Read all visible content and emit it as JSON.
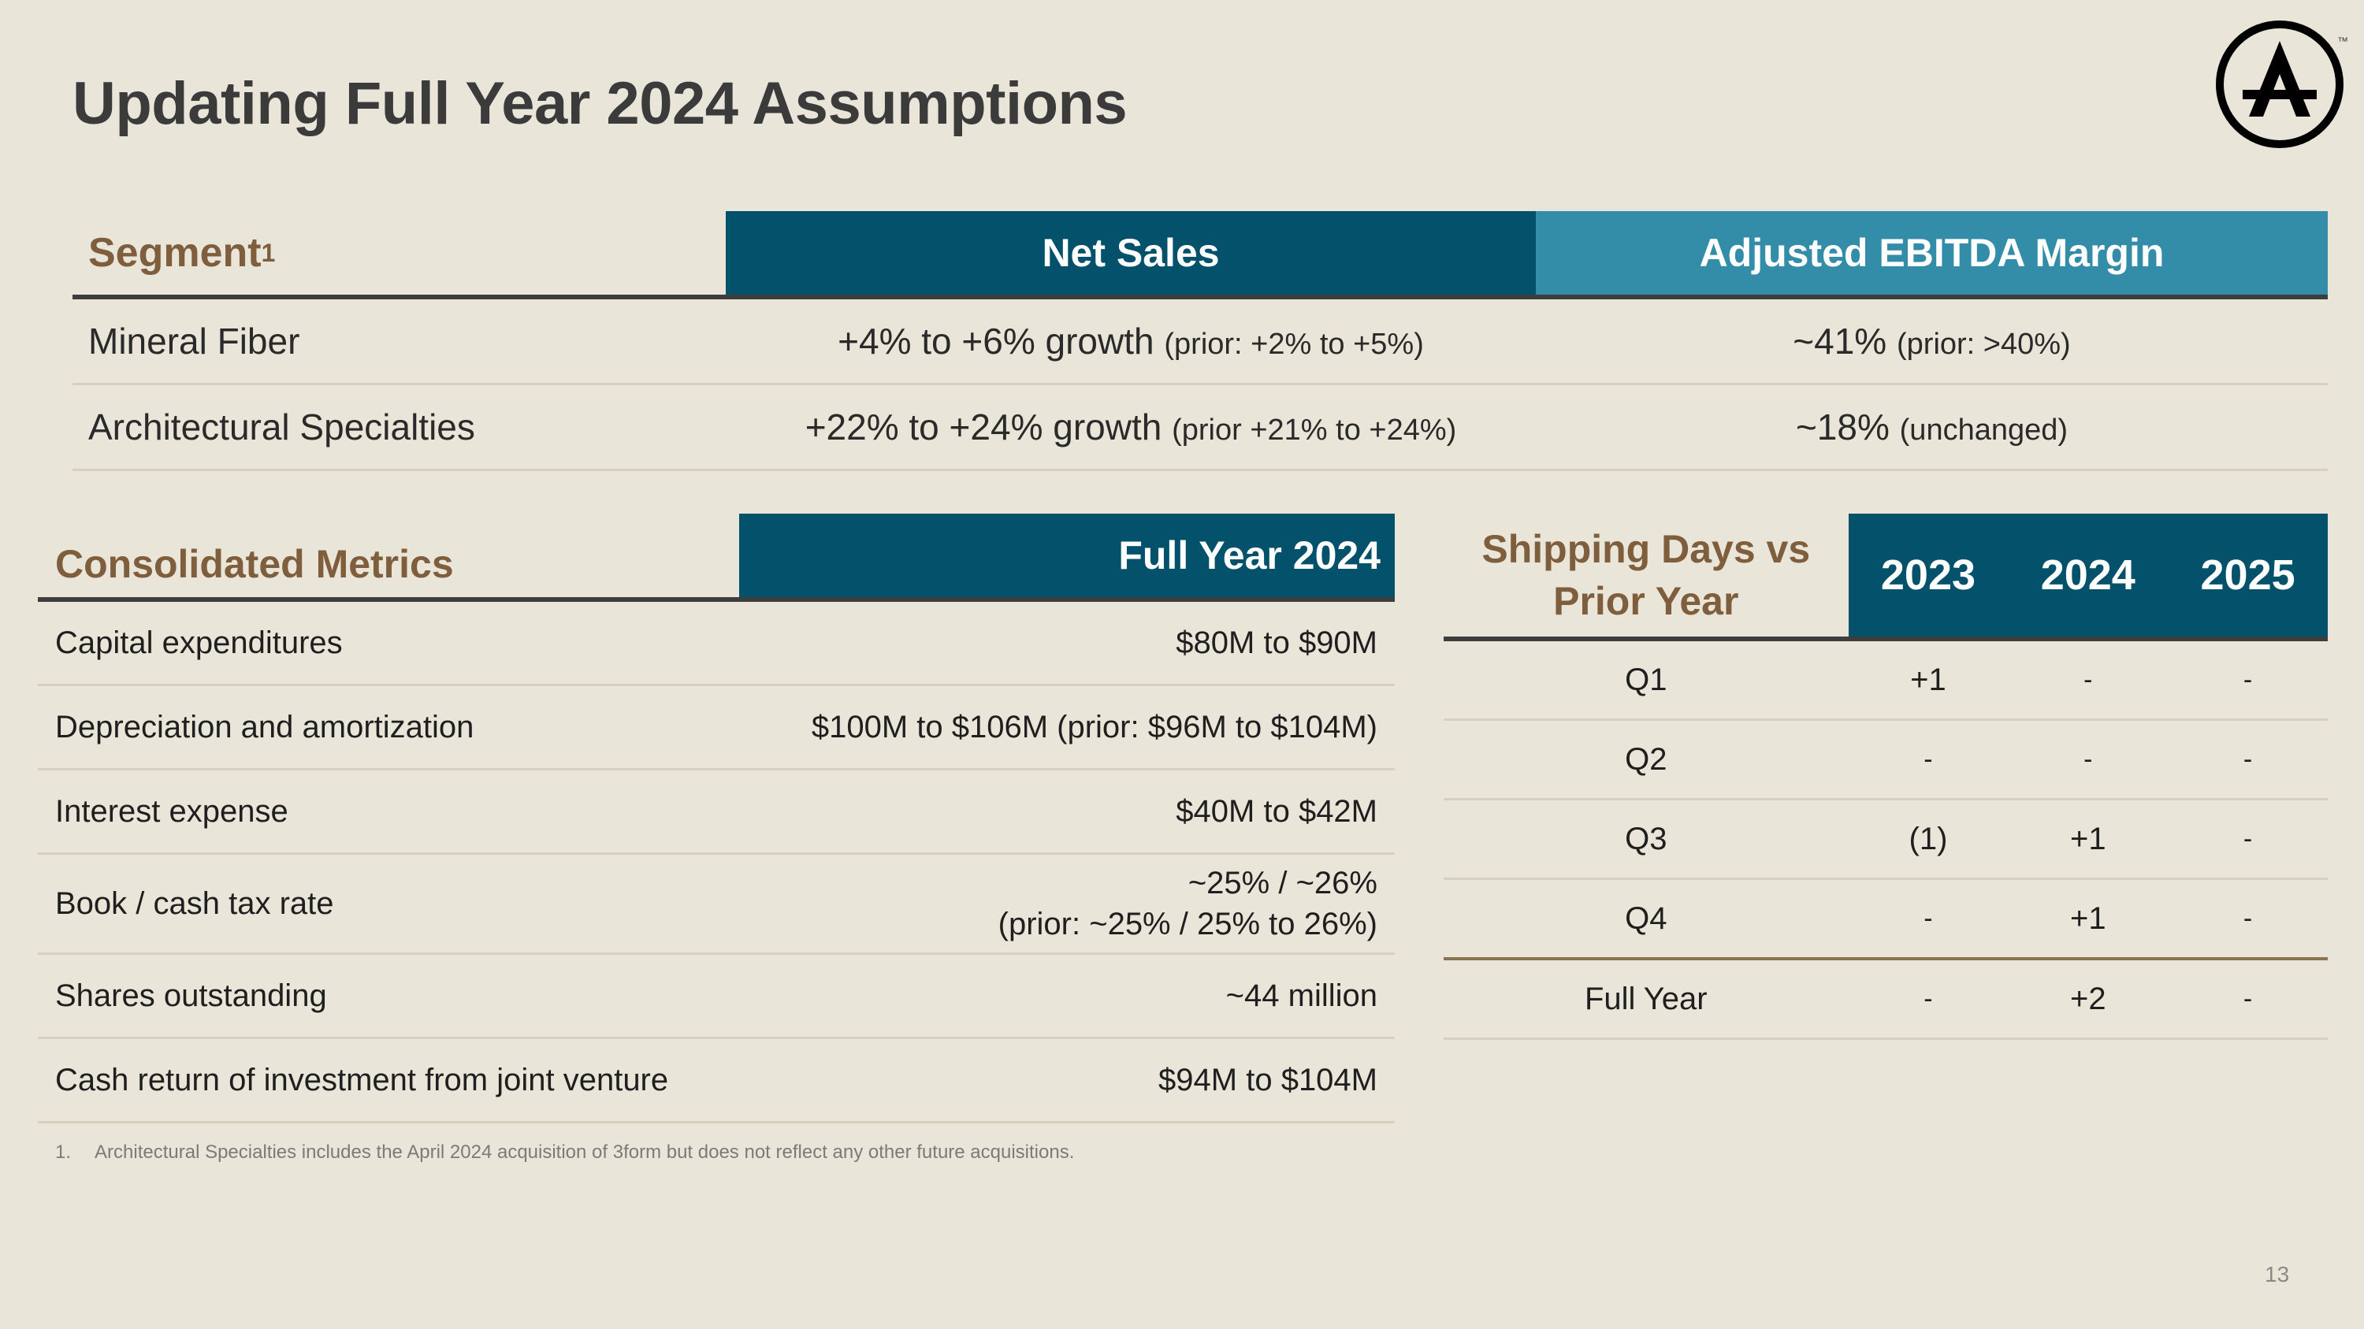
{
  "title": "Updating Full Year 2024 Assumptions",
  "segment_table": {
    "headers": {
      "segment": "Segment",
      "segment_sup": "1",
      "net_sales": "Net Sales",
      "ebitda": "Adjusted EBITDA Margin"
    },
    "rows": [
      {
        "segment": "Mineral Fiber",
        "net_sales_main": "+4% to +6% growth",
        "net_sales_note": "(prior: +2% to +5%)",
        "ebitda_main": "~41%",
        "ebitda_note": "(prior: >40%)"
      },
      {
        "segment": "Architectural Specialties",
        "net_sales_main": "+22% to +24% growth",
        "net_sales_note": "(prior +21% to +24%)",
        "ebitda_main": "~18%",
        "ebitda_note": "(unchanged)"
      }
    ]
  },
  "consolidated": {
    "headers": {
      "metric": "Consolidated Metrics",
      "value": "Full Year 2024"
    },
    "rows": [
      {
        "metric": "Capital expenditures",
        "value": "$80M to $90M"
      },
      {
        "metric": "Depreciation and amortization",
        "value": "$100M to $106M (prior: $96M to $104M)"
      },
      {
        "metric": "Interest expense",
        "value": "$40M to $42M"
      },
      {
        "metric": "Book / cash tax rate",
        "value": "~25% / ~26%",
        "value2": "(prior: ~25% / 25% to 26%)"
      },
      {
        "metric": "Shares outstanding",
        "value": "~44 million"
      },
      {
        "metric": "Cash return of investment from joint venture",
        "value": "$94M to $104M"
      }
    ]
  },
  "shipping": {
    "headers": {
      "label": "Shipping Days vs Prior Year",
      "years": [
        "2023",
        "2024",
        "2025"
      ]
    },
    "rows": [
      {
        "label": "Q1",
        "values": [
          "+1",
          "-",
          "-"
        ]
      },
      {
        "label": "Q2",
        "values": [
          "-",
          "-",
          "-"
        ]
      },
      {
        "label": "Q3",
        "values": [
          "(1)",
          "+1",
          "-"
        ]
      },
      {
        "label": "Q4",
        "values": [
          "-",
          "+1",
          "-"
        ]
      },
      {
        "label": "Full Year",
        "values": [
          "-",
          "+2",
          "-"
        ]
      }
    ]
  },
  "footnote": {
    "number": "1.",
    "text": "Architectural Specialties includes the April 2024 acquisition of 3form but does not reflect any other future acquisitions."
  },
  "page_number": "13",
  "logo": {
    "icon": "armstrong-a-logo-icon",
    "tm": "™"
  },
  "colors": {
    "background": "#EAE5D9",
    "dark_teal": "#03516A",
    "light_teal": "#338DA8",
    "brown": "#7E5E3C"
  }
}
